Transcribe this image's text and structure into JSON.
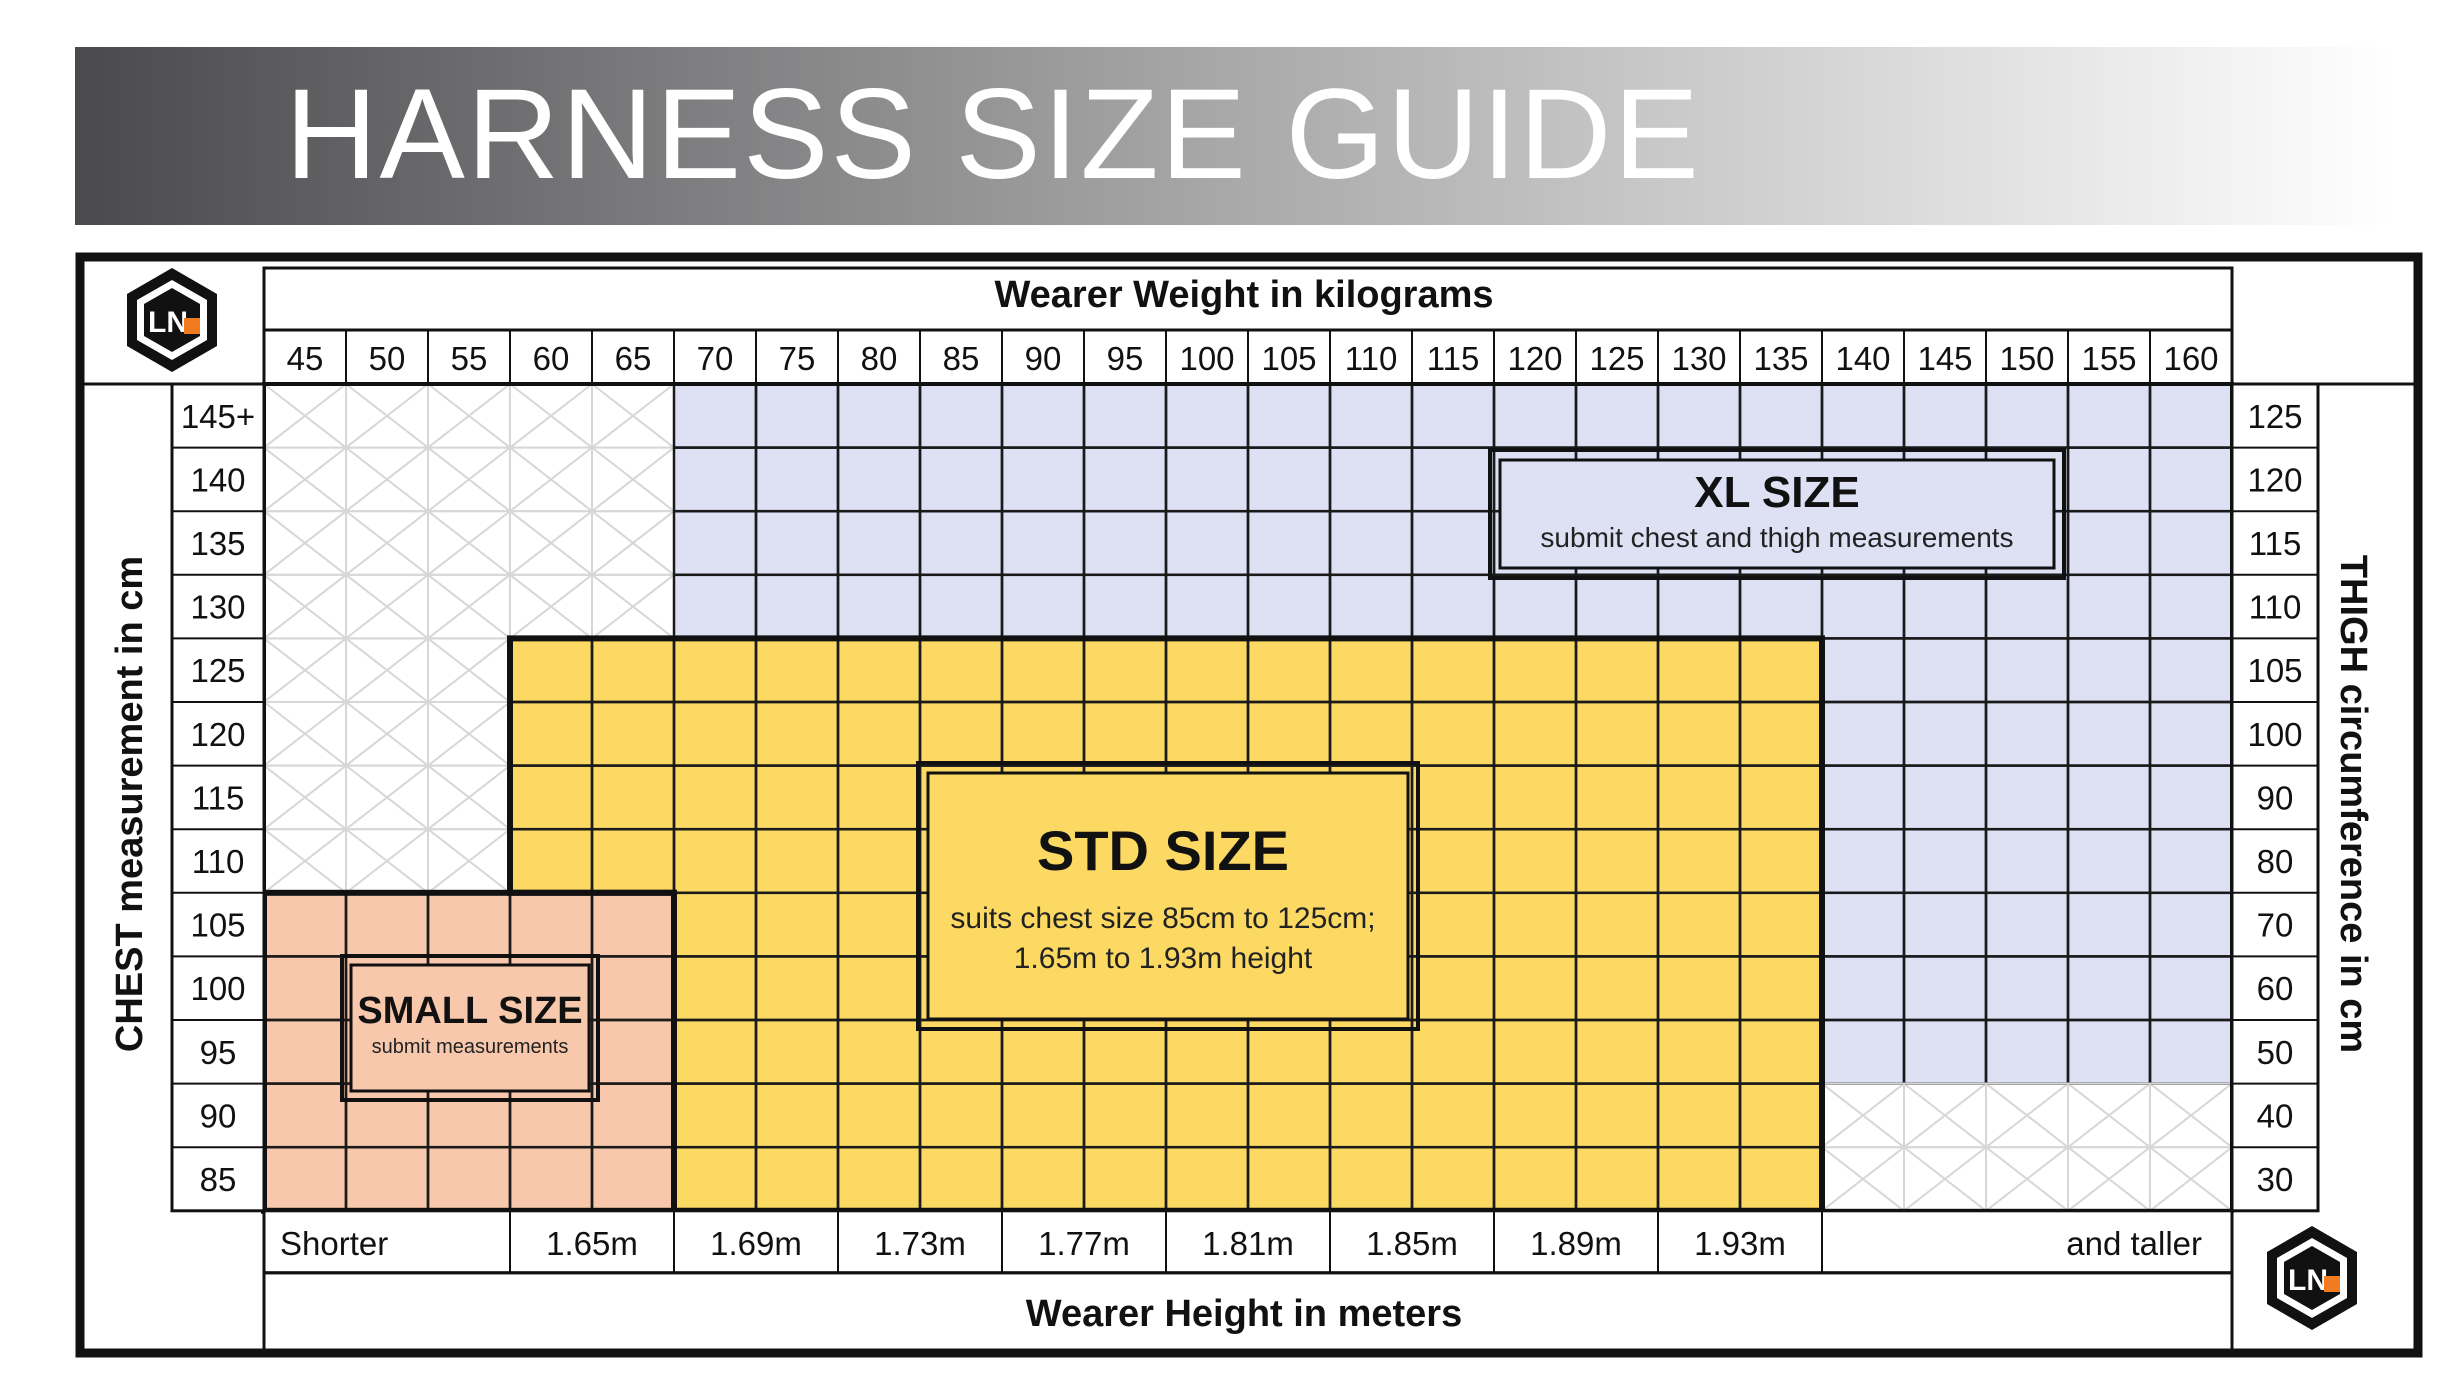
{
  "title": "HARNESS SIZE GUIDE",
  "chart_data": {
    "type": "table",
    "top_axis_label": "Wearer Weight in kilograms",
    "bottom_axis_label": "Wearer Height in meters",
    "left_axis_label": "CHEST measurement in cm",
    "right_axis_label": "THIGH circumference in cm",
    "weights": [
      "45",
      "50",
      "55",
      "60",
      "65",
      "70",
      "75",
      "80",
      "85",
      "90",
      "95",
      "100",
      "105",
      "110",
      "115",
      "120",
      "125",
      "130",
      "135",
      "140",
      "145",
      "150",
      "155",
      "160"
    ],
    "chest": [
      "145+",
      "140",
      "135",
      "130",
      "125",
      "120",
      "115",
      "110",
      "105",
      "100",
      "95",
      "90",
      "85"
    ],
    "thigh": [
      "125",
      "120",
      "115",
      "110",
      "105",
      "100",
      "90",
      "80",
      "70",
      "60",
      "50",
      "40",
      "30"
    ],
    "heights": [
      {
        "label": "Shorter",
        "col_start": 0,
        "col_end": 3
      },
      {
        "label": "1.65m",
        "col_start": 3,
        "col_end": 5
      },
      {
        "label": "1.69m",
        "col_start": 5,
        "col_end": 7
      },
      {
        "label": "1.73m",
        "col_start": 7,
        "col_end": 9
      },
      {
        "label": "1.77m",
        "col_start": 9,
        "col_end": 11
      },
      {
        "label": "1.81m",
        "col_start": 11,
        "col_end": 13
      },
      {
        "label": "1.85m",
        "col_start": 13,
        "col_end": 15
      },
      {
        "label": "1.89m",
        "col_start": 15,
        "col_end": 17
      },
      {
        "label": "1.93m",
        "col_start": 17,
        "col_end": 19
      },
      {
        "label": "and taller",
        "col_start": 19,
        "col_end": 24
      }
    ],
    "regions": [
      {
        "name": "XL SIZE",
        "note": "submit chest and thigh measurements",
        "color": "#dde1f3",
        "covers": "weights 70–160 with chest 130–145+; weights 140–160 with chest 95–125"
      },
      {
        "name": "STD SIZE",
        "note_line1": "suits chest size 85cm to 125cm;",
        "note_line2": "1.65m to 1.93m height",
        "color": "#fcd963",
        "covers": "weights 60–135 with chest 110–125; weights 70–135 with chest 85–105"
      },
      {
        "name": "SMALL SIZE",
        "note": "submit measurements",
        "color": "#f7c8ac",
        "covers": "weights 45–65 with chest 85–105"
      }
    ],
    "colors": {
      "border": "#111111",
      "grid": "#1a1a1a",
      "empty_cross": "#d7d7d7",
      "logo_orange": "#f27a21"
    }
  }
}
